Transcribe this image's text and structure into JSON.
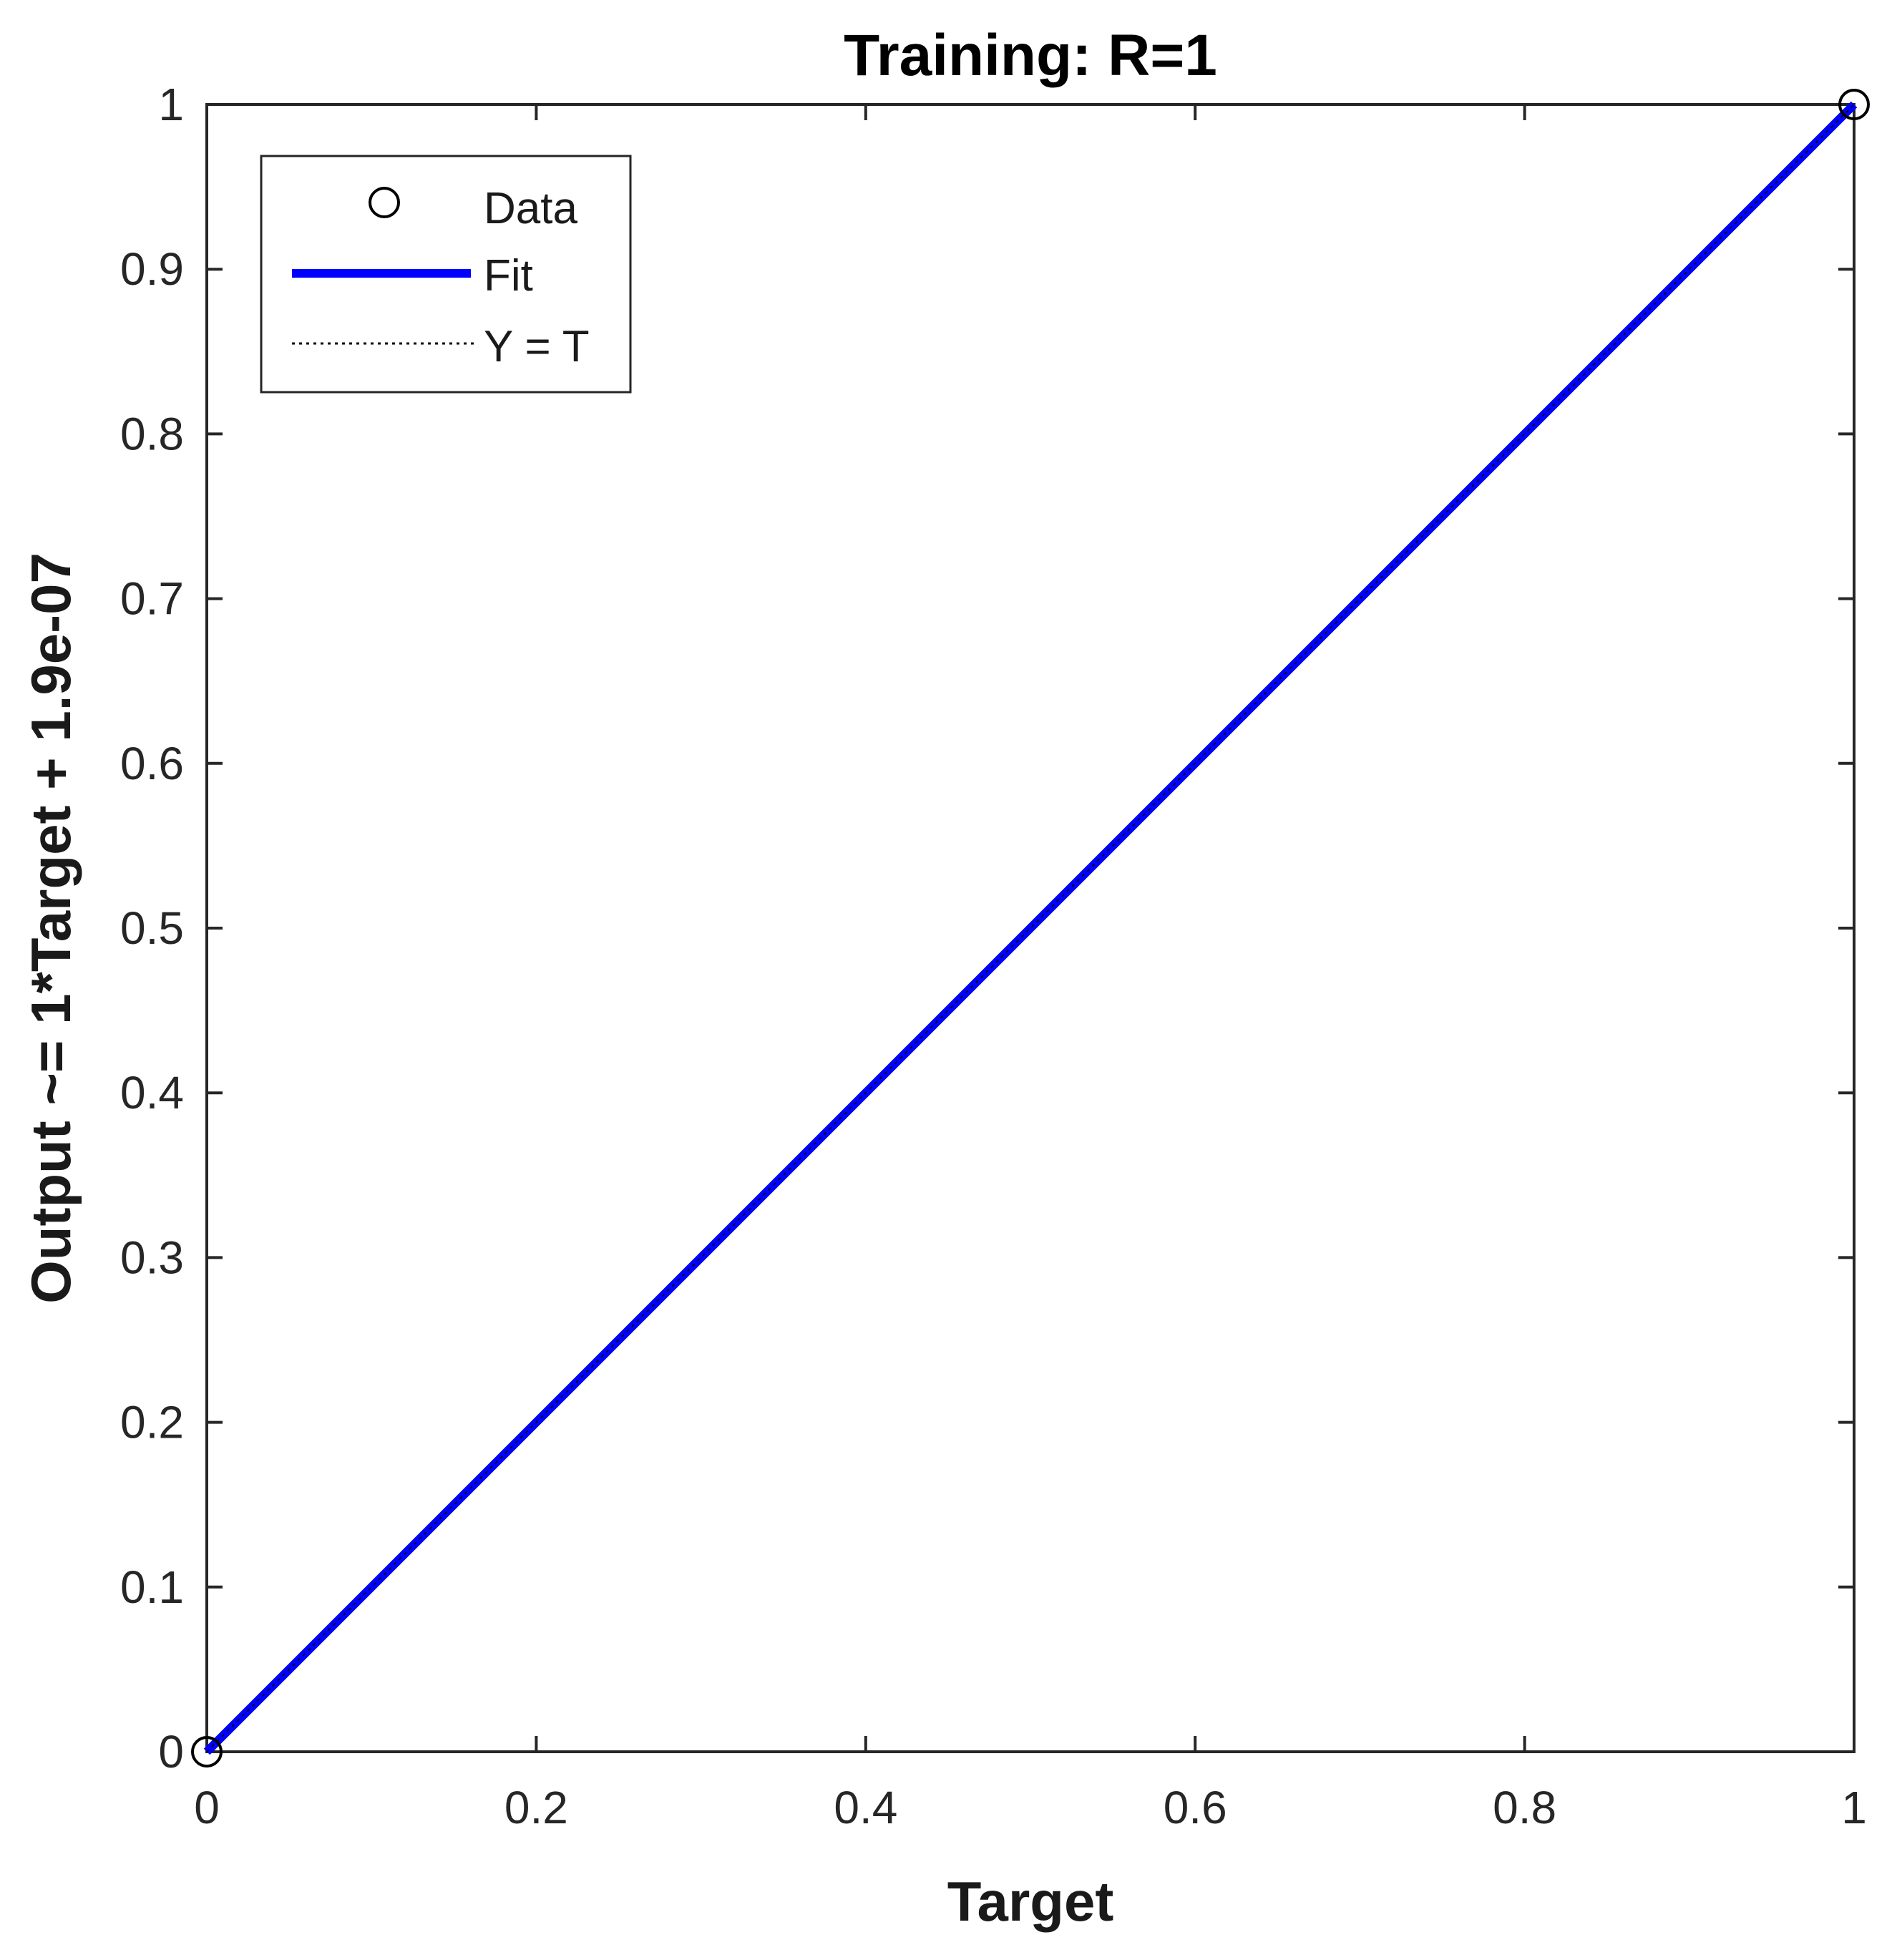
{
  "chart_data": {
    "type": "scatter",
    "title": "Training: R=1",
    "xlabel": "Target",
    "ylabel": "Output ~= 1*Target + 1.9e-07",
    "xlim": [
      0,
      1
    ],
    "ylim": [
      0,
      1
    ],
    "x_ticks": [
      "0",
      "0.2",
      "0.4",
      "0.6",
      "0.8",
      "1"
    ],
    "y_ticks": [
      "0",
      "0.1",
      "0.2",
      "0.3",
      "0.4",
      "0.5",
      "0.6",
      "0.7",
      "0.8",
      "0.9",
      "1"
    ],
    "grid": false,
    "legend_position": "top-left",
    "series": [
      {
        "name": "Data",
        "kind": "markers",
        "marker": "circle",
        "color": "#000000",
        "points": [
          [
            0,
            0
          ],
          [
            1,
            1
          ]
        ]
      },
      {
        "name": "Fit",
        "kind": "line",
        "color": "#0000ff",
        "slope": 1,
        "intercept": 1.9e-07,
        "points": [
          [
            0,
            0
          ],
          [
            1,
            1
          ]
        ]
      },
      {
        "name": "Y = T",
        "kind": "dotted-line",
        "color": "#000000",
        "points": [
          [
            0,
            0
          ],
          [
            1,
            1
          ]
        ]
      }
    ]
  }
}
